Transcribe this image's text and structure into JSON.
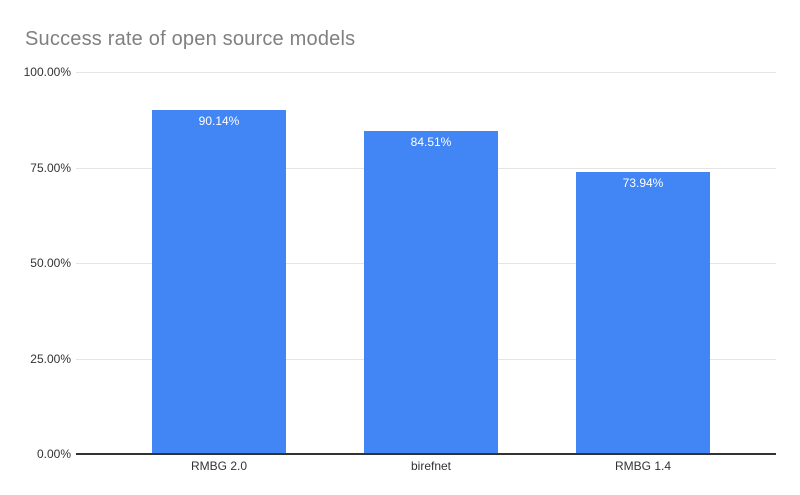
{
  "chart_data": {
    "type": "bar",
    "title": "Success rate of open source models",
    "categories": [
      "RMBG 2.0",
      "birefnet",
      "RMBG 1.4"
    ],
    "values": [
      90.14,
      84.51,
      73.94
    ],
    "value_labels": [
      "90.14%",
      "84.51%",
      "73.94%"
    ],
    "xlabel": "",
    "ylabel": "",
    "ylim": [
      0,
      100
    ],
    "y_ticks": [
      "100.00%",
      "75.00%",
      "50.00%",
      "25.00%",
      "0.00%"
    ],
    "y_tick_values": [
      100,
      75,
      50,
      25,
      0
    ],
    "grid": true,
    "legend_position": "none",
    "colors": {
      "bar": "#4285f4",
      "value_label": "#ffffff",
      "title": "#808080",
      "axis_text": "#333333",
      "gridline": "#e4e4e4",
      "axis_line": "#333333",
      "background": "#ffffff"
    }
  }
}
